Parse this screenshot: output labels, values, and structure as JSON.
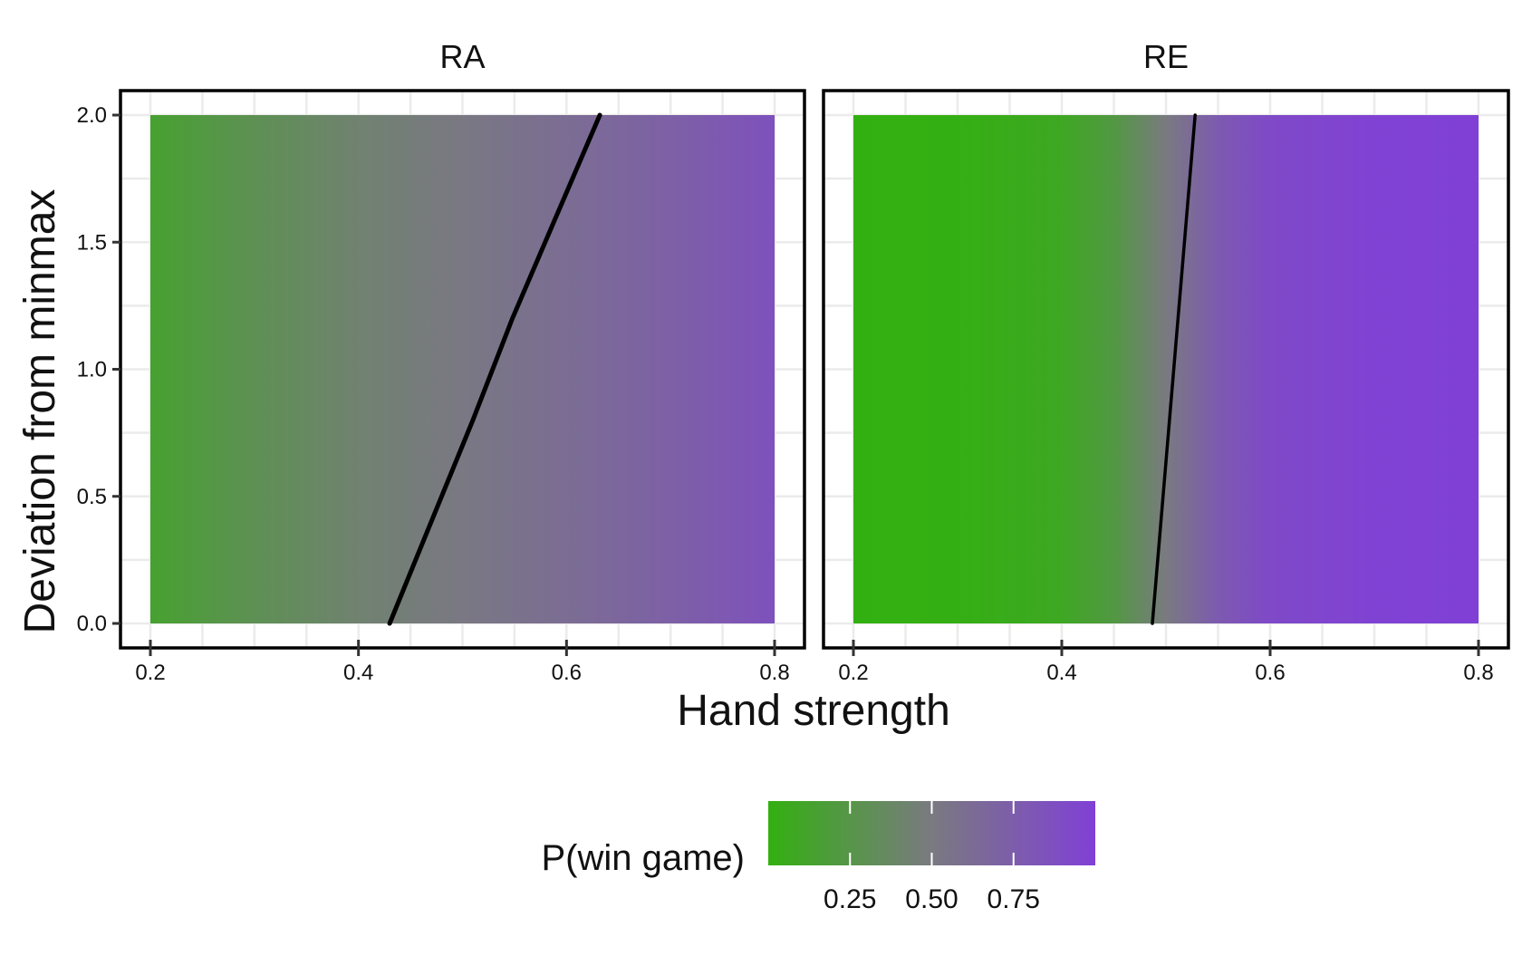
{
  "chart_data": {
    "type": "heatmap",
    "xlabel": "Hand strength",
    "ylabel": "Deviation from minmax",
    "xlim": [
      0.2,
      0.8
    ],
    "ylim": [
      0.0,
      2.0
    ],
    "x_ticks": [
      "0.2",
      "0.4",
      "0.6",
      "0.8"
    ],
    "y_ticks": [
      "0.0",
      "0.5",
      "1.0",
      "1.5",
      "2.0"
    ],
    "grid": true,
    "colorbar": {
      "title": "P(win game)",
      "position": "bottom",
      "range": [
        0.0,
        1.0
      ],
      "ticks": [
        "0.25",
        "0.50",
        "0.75"
      ],
      "low_color": "#33b011",
      "mid_color": "#7a7a80",
      "high_color": "#8040d6"
    },
    "panels": [
      {
        "title": "RA",
        "gradient_stops": [
          {
            "x": 0.2,
            "p": 0.14
          },
          {
            "x": 0.3,
            "p": 0.3
          },
          {
            "x": 0.4,
            "p": 0.43
          },
          {
            "x": 0.5,
            "p": 0.52
          },
          {
            "x": 0.6,
            "p": 0.61
          },
          {
            "x": 0.7,
            "p": 0.72
          },
          {
            "x": 0.8,
            "p": 0.85
          }
        ],
        "boundary": [
          {
            "x": 0.43,
            "y": 0.0
          },
          {
            "x": 0.47,
            "y": 0.4
          },
          {
            "x": 0.51,
            "y": 0.8
          },
          {
            "x": 0.548,
            "y": 1.2
          },
          {
            "x": 0.59,
            "y": 1.6
          },
          {
            "x": 0.632,
            "y": 2.0
          }
        ]
      },
      {
        "title": "RE",
        "gradient_stops": [
          {
            "x": 0.2,
            "p": 0.0
          },
          {
            "x": 0.3,
            "p": 0.01
          },
          {
            "x": 0.4,
            "p": 0.08
          },
          {
            "x": 0.45,
            "p": 0.22
          },
          {
            "x": 0.5,
            "p": 0.5
          },
          {
            "x": 0.55,
            "p": 0.78
          },
          {
            "x": 0.6,
            "p": 0.92
          },
          {
            "x": 0.7,
            "p": 0.98
          },
          {
            "x": 0.8,
            "p": 1.0
          }
        ],
        "boundary": [
          {
            "x": 0.487,
            "y": 0.0
          },
          {
            "x": 0.528,
            "y": 2.0
          }
        ]
      }
    ]
  }
}
